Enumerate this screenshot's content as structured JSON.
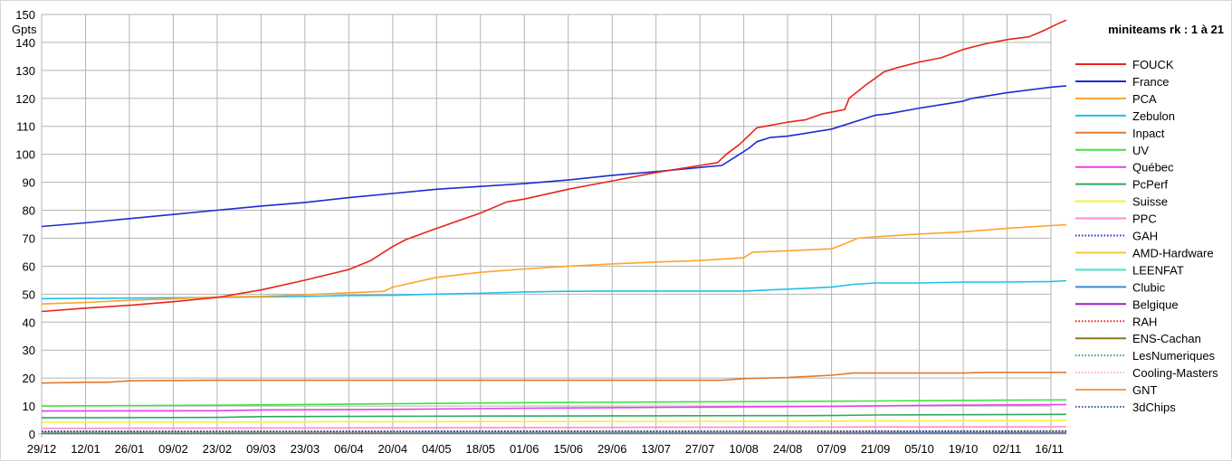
{
  "chart_data": {
    "type": "line",
    "title": "",
    "ylabel": "Gpts",
    "xlabel": "",
    "ylim": [
      0,
      150
    ],
    "yticks": [
      0,
      10,
      20,
      30,
      40,
      50,
      60,
      70,
      80,
      90,
      100,
      110,
      120,
      130,
      140,
      150
    ],
    "grid": true,
    "legend_title": "miniteams rk : 1 à 21",
    "legend_position": "right",
    "x_labels": [
      "29/12",
      "12/01",
      "26/01",
      "09/02",
      "23/02",
      "09/03",
      "23/03",
      "06/04",
      "20/04",
      "04/05",
      "18/05",
      "01/06",
      "15/06",
      "29/06",
      "13/07",
      "27/07",
      "10/08",
      "24/08",
      "07/09",
      "21/09",
      "05/10",
      "19/10",
      "02/11",
      "16/11"
    ],
    "series": [
      {
        "name": "FOUCK",
        "color": "#e8241c",
        "style": "solid",
        "points": [
          [
            0,
            43.8
          ],
          [
            1,
            45
          ],
          [
            2,
            46
          ],
          [
            3,
            47.3
          ],
          [
            4,
            48.8
          ],
          [
            5,
            51.5
          ],
          [
            6,
            55
          ],
          [
            7,
            58.8
          ],
          [
            7.5,
            62
          ],
          [
            8,
            67
          ],
          [
            8.3,
            69.5
          ],
          [
            9,
            73.5
          ],
          [
            10,
            79
          ],
          [
            10.6,
            83
          ],
          [
            11,
            84
          ],
          [
            12,
            87.5
          ],
          [
            13,
            90.5
          ],
          [
            14,
            93.5
          ],
          [
            15,
            96
          ],
          [
            15.4,
            97
          ],
          [
            15.6,
            100
          ],
          [
            15.9,
            103.5
          ],
          [
            16.3,
            109.5
          ],
          [
            17,
            111.5
          ],
          [
            17.4,
            112.3
          ],
          [
            17.8,
            114.5
          ],
          [
            18.3,
            116
          ],
          [
            18.4,
            120
          ],
          [
            18.8,
            125
          ],
          [
            19.2,
            129.5
          ],
          [
            19.5,
            131
          ],
          [
            20,
            133
          ],
          [
            20.5,
            134.5
          ],
          [
            21,
            137.5
          ],
          [
            21.5,
            139.5
          ],
          [
            22,
            141
          ],
          [
            22.5,
            142
          ],
          [
            22.8,
            144
          ],
          [
            23.2,
            147
          ],
          [
            23.35,
            148
          ]
        ]
      },
      {
        "name": "France",
        "color": "#1c2ccc",
        "style": "solid",
        "points": [
          [
            0,
            74.2
          ],
          [
            1,
            75.5
          ],
          [
            2,
            77
          ],
          [
            3,
            78.5
          ],
          [
            4,
            80
          ],
          [
            5,
            81.5
          ],
          [
            6,
            82.8
          ],
          [
            7,
            84.5
          ],
          [
            8,
            86
          ],
          [
            9,
            87.5
          ],
          [
            10,
            88.5
          ],
          [
            11,
            89.5
          ],
          [
            12,
            90.8
          ],
          [
            13,
            92.5
          ],
          [
            14,
            93.8
          ],
          [
            15,
            95.3
          ],
          [
            15.5,
            96
          ],
          [
            15.8,
            99
          ],
          [
            16.1,
            102
          ],
          [
            16.3,
            104.5
          ],
          [
            16.6,
            106
          ],
          [
            17,
            106.5
          ],
          [
            18,
            109
          ],
          [
            18.3,
            110.5
          ],
          [
            19,
            114
          ],
          [
            19.3,
            114.5
          ],
          [
            20,
            116.5
          ],
          [
            21,
            119
          ],
          [
            21.2,
            120
          ],
          [
            22,
            122
          ],
          [
            23,
            124
          ],
          [
            23.35,
            124.5
          ]
        ]
      },
      {
        "name": "PCA",
        "color": "#ffa32b",
        "style": "solid",
        "points": [
          [
            0,
            46.5
          ],
          [
            1,
            47
          ],
          [
            2,
            47.8
          ],
          [
            3,
            48.3
          ],
          [
            4,
            49
          ],
          [
            5,
            49.2
          ],
          [
            6,
            49.8
          ],
          [
            7,
            50.5
          ],
          [
            7.8,
            51
          ],
          [
            8,
            52.5
          ],
          [
            9,
            56
          ],
          [
            10,
            57.8
          ],
          [
            11,
            59
          ],
          [
            12,
            60
          ],
          [
            13,
            60.8
          ],
          [
            14,
            61.5
          ],
          [
            15,
            62
          ],
          [
            16,
            63
          ],
          [
            16.2,
            65
          ],
          [
            17,
            65.5
          ],
          [
            18,
            66.2
          ],
          [
            18.3,
            68
          ],
          [
            18.6,
            70
          ],
          [
            19,
            70.5
          ],
          [
            20,
            71.5
          ],
          [
            21,
            72.3
          ],
          [
            22,
            73.5
          ],
          [
            23,
            74.5
          ],
          [
            23.35,
            74.8
          ]
        ]
      },
      {
        "name": "Zebulon",
        "color": "#20c0e8",
        "style": "solid",
        "points": [
          [
            0,
            48.4
          ],
          [
            2,
            48.6
          ],
          [
            4,
            48.8
          ],
          [
            5,
            49
          ],
          [
            6,
            49.2
          ],
          [
            7,
            49.5
          ],
          [
            8,
            49.6
          ],
          [
            9,
            50
          ],
          [
            10,
            50.3
          ],
          [
            11,
            50.8
          ],
          [
            12,
            51
          ],
          [
            13,
            51.1
          ],
          [
            14,
            51.1
          ],
          [
            15,
            51.1
          ],
          [
            16,
            51.1
          ],
          [
            17,
            51.8
          ],
          [
            18,
            52.5
          ],
          [
            18.5,
            53.5
          ],
          [
            19,
            54
          ],
          [
            20,
            54
          ],
          [
            21,
            54.3
          ],
          [
            22,
            54.3
          ],
          [
            23,
            54.5
          ],
          [
            23.35,
            54.8
          ]
        ]
      },
      {
        "name": "Inpact",
        "color": "#e07a2e",
        "style": "solid",
        "points": [
          [
            0,
            18.2
          ],
          [
            1,
            18.5
          ],
          [
            1.5,
            18.5
          ],
          [
            2,
            19
          ],
          [
            4,
            19.2
          ],
          [
            6,
            19.2
          ],
          [
            10,
            19.2
          ],
          [
            14,
            19.2
          ],
          [
            15.5,
            19.2
          ],
          [
            16,
            19.8
          ],
          [
            17,
            20.2
          ],
          [
            18,
            21
          ],
          [
            18.5,
            21.8
          ],
          [
            20,
            21.8
          ],
          [
            21,
            21.8
          ],
          [
            21.5,
            22
          ],
          [
            23.35,
            22
          ]
        ]
      },
      {
        "name": "UV",
        "color": "#3ee33e",
        "style": "solid",
        "points": [
          [
            0,
            10
          ],
          [
            3,
            10.2
          ],
          [
            5,
            10.4
          ],
          [
            8,
            10.8
          ],
          [
            11,
            11.2
          ],
          [
            15,
            11.5
          ],
          [
            18,
            11.7
          ],
          [
            19,
            11.8
          ],
          [
            22,
            12.1
          ],
          [
            23.35,
            12.2
          ]
        ]
      },
      {
        "name": "Québec",
        "color": "#e83ee8",
        "style": "solid",
        "points": [
          [
            0,
            8.2
          ],
          [
            4,
            8.3
          ],
          [
            5,
            8.6
          ],
          [
            8,
            8.8
          ],
          [
            11,
            9.2
          ],
          [
            15,
            9.6
          ],
          [
            18,
            9.9
          ],
          [
            20,
            10.2
          ],
          [
            23.35,
            10.5
          ]
        ]
      },
      {
        "name": "PcPerf",
        "color": "#2eaa5e",
        "style": "solid",
        "points": [
          [
            0,
            5.8
          ],
          [
            4,
            5.9
          ],
          [
            5,
            6.2
          ],
          [
            10,
            6.4
          ],
          [
            14,
            6.5
          ],
          [
            18,
            6.6
          ],
          [
            19,
            6.8
          ],
          [
            23.35,
            7
          ]
        ]
      },
      {
        "name": "Suisse",
        "color": "#f2f23a",
        "style": "solid",
        "points": [
          [
            0,
            4.2
          ],
          [
            8,
            4.4
          ],
          [
            14,
            4.5
          ],
          [
            23.35,
            4.8
          ]
        ]
      },
      {
        "name": "PPC",
        "color": "#ff8ad0",
        "style": "solid",
        "points": [
          [
            0,
            2
          ],
          [
            8,
            2.2
          ],
          [
            14,
            2.4
          ],
          [
            23.35,
            2.6
          ]
        ]
      },
      {
        "name": "GAH",
        "color": "#1c2ccc",
        "style": "dotted",
        "points": [
          [
            0,
            0.9
          ],
          [
            23.35,
            1
          ]
        ]
      },
      {
        "name": "AMD-Hardware",
        "color": "#f5c82a",
        "style": "solid",
        "points": [
          [
            0,
            0.8
          ],
          [
            23.35,
            0.9
          ]
        ]
      },
      {
        "name": "LEENFAT",
        "color": "#3ee8c8",
        "style": "solid",
        "points": [
          [
            0,
            0.7
          ],
          [
            23.35,
            0.8
          ]
        ]
      },
      {
        "name": "Clubic",
        "color": "#3a8ad8",
        "style": "solid",
        "points": [
          [
            0,
            0.6
          ],
          [
            23.35,
            0.7
          ]
        ]
      },
      {
        "name": "Belgique",
        "color": "#9a20c8",
        "style": "solid",
        "points": [
          [
            0,
            0.5
          ],
          [
            23.35,
            0.6
          ]
        ]
      },
      {
        "name": "RAH",
        "color": "#e8241c",
        "style": "dotted",
        "points": [
          [
            0,
            0.4
          ],
          [
            23.35,
            0.5
          ]
        ]
      },
      {
        "name": "ENS-Cachan",
        "color": "#8a7a1c",
        "style": "solid",
        "points": [
          [
            0,
            0.3
          ],
          [
            23.35,
            0.4
          ]
        ]
      },
      {
        "name": "LesNumeriques",
        "color": "#2eaa5e",
        "style": "dotted",
        "points": [
          [
            0,
            0.25
          ],
          [
            23.35,
            0.3
          ]
        ]
      },
      {
        "name": "Cooling-Masters",
        "color": "#ffb0d8",
        "style": "dotted",
        "points": [
          [
            0,
            0.2
          ],
          [
            23.35,
            0.25
          ]
        ]
      },
      {
        "name": "GNT",
        "color": "#f2a05a",
        "style": "solid",
        "points": [
          [
            0,
            0.15
          ],
          [
            23.35,
            0.2
          ]
        ]
      },
      {
        "name": "3dChips",
        "color": "#3a5aa8",
        "style": "dotted",
        "points": [
          [
            0,
            0.1
          ],
          [
            23.35,
            0.15
          ]
        ]
      }
    ]
  }
}
